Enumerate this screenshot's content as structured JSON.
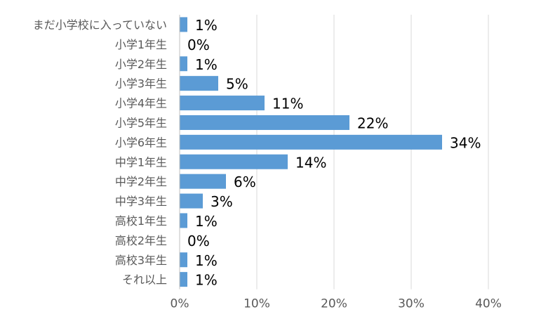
{
  "chart_data": {
    "type": "bar",
    "orientation": "horizontal",
    "categories": [
      "まだ小学校に入っていない",
      "小学1年生",
      "小学2年生",
      "小学3年生",
      "小学4年生",
      "小学5年生",
      "小学6年生",
      "中学1年生",
      "中学2年生",
      "中学3年生",
      "高校1年生",
      "高校2年生",
      "高校3年生",
      "それ以上"
    ],
    "values": [
      1,
      0,
      1,
      5,
      11,
      22,
      34,
      14,
      6,
      3,
      1,
      0,
      1,
      1
    ],
    "data_labels": [
      "1%",
      "0%",
      "1%",
      "5%",
      "11%",
      "22%",
      "34%",
      "14%",
      "6%",
      "3%",
      "1%",
      "0%",
      "1%",
      "1%"
    ],
    "xlim": [
      0,
      40
    ],
    "x_ticks": [
      0,
      10,
      20,
      30,
      40
    ],
    "x_tick_labels": [
      "0%",
      "10%",
      "20%",
      "30%",
      "40%"
    ],
    "grid": true,
    "legend": "none",
    "title": "",
    "xlabel": "",
    "ylabel": "",
    "colors": {
      "bar": "#5b9bd5",
      "grid": "#d9d9d9",
      "axis": "#bfbfbf",
      "text": "#000000",
      "tick_text": "#595959"
    }
  }
}
